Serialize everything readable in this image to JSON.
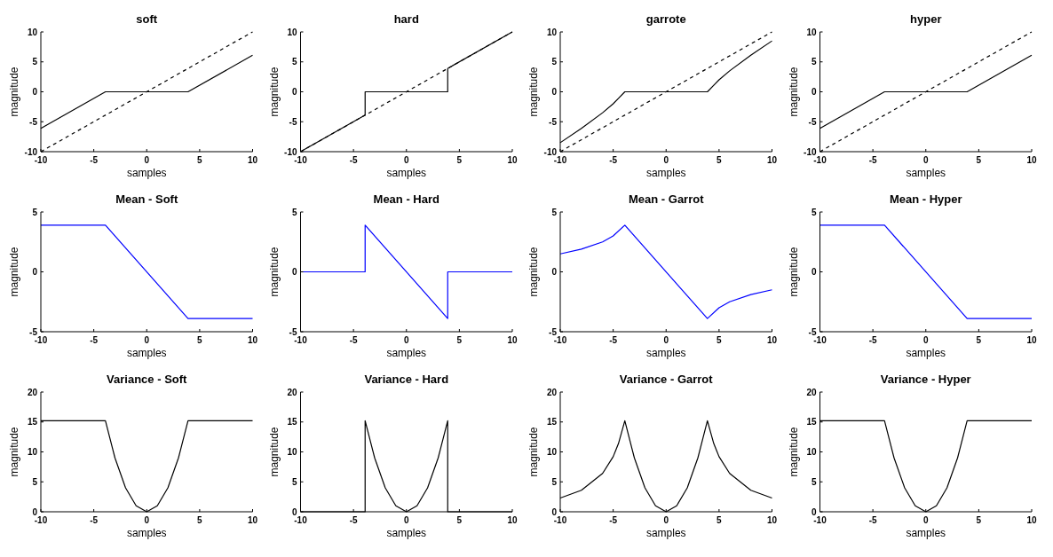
{
  "chart_data": [
    {
      "type": "line",
      "title": "soft",
      "xlabel": "samples",
      "ylabel": "magnitude",
      "xlim": [
        -10,
        10
      ],
      "xticks": [
        -10,
        -5,
        0,
        5,
        10
      ],
      "ylim": [
        -10,
        10
      ],
      "yticks": [
        -10,
        -5,
        0,
        5,
        10
      ],
      "series": [
        {
          "color": "#000000",
          "line_style": "dashed",
          "x": [
            -10,
            10
          ],
          "values": [
            -10,
            10
          ]
        },
        {
          "color": "#000000",
          "x": [
            -10,
            -3.9,
            3.9,
            10
          ],
          "values": [
            -6.1,
            0,
            0,
            6.1
          ]
        }
      ]
    },
    {
      "type": "line",
      "title": "hard",
      "xlabel": "samples",
      "ylabel": "magnitude",
      "xlim": [
        -10,
        10
      ],
      "xticks": [
        -10,
        -5,
        0,
        5,
        10
      ],
      "ylim": [
        -10,
        10
      ],
      "yticks": [
        -10,
        -5,
        0,
        5,
        10
      ],
      "series": [
        {
          "color": "#000000",
          "line_style": "dashed",
          "x": [
            -10,
            10
          ],
          "values": [
            -10,
            10
          ]
        },
        {
          "color": "#000000",
          "x": [
            -10,
            -3.9,
            -3.9,
            3.9,
            3.9,
            10
          ],
          "values": [
            -10,
            -3.9,
            0,
            0,
            3.9,
            10
          ]
        }
      ]
    },
    {
      "type": "line",
      "title": "garrote",
      "xlabel": "samples",
      "ylabel": "magnitude",
      "xlim": [
        -10,
        10
      ],
      "xticks": [
        -10,
        -5,
        0,
        5,
        10
      ],
      "ylim": [
        -10,
        10
      ],
      "yticks": [
        -10,
        -5,
        0,
        5,
        10
      ],
      "series": [
        {
          "color": "#000000",
          "line_style": "dashed",
          "x": [
            -10,
            10
          ],
          "values": [
            -10,
            10
          ]
        },
        {
          "color": "#000000",
          "x": [
            -10,
            -8,
            -6,
            -5,
            -4.5,
            -3.9,
            3.9,
            4.5,
            5,
            6,
            8,
            10
          ],
          "values": [
            -8.5,
            -6.1,
            -3.5,
            -2,
            -1.1,
            0,
            0,
            1.1,
            2,
            3.5,
            6.1,
            8.5
          ]
        }
      ]
    },
    {
      "type": "line",
      "title": "hyper",
      "xlabel": "samples",
      "ylabel": "magnitude",
      "xlim": [
        -10,
        10
      ],
      "xticks": [
        -10,
        -5,
        0,
        5,
        10
      ],
      "ylim": [
        -10,
        10
      ],
      "yticks": [
        -10,
        -5,
        0,
        5,
        10
      ],
      "series": [
        {
          "color": "#000000",
          "line_style": "dashed",
          "x": [
            -10,
            10
          ],
          "values": [
            -10,
            10
          ]
        },
        {
          "color": "#000000",
          "x": [
            -10,
            -3.9,
            3.9,
            10
          ],
          "values": [
            -6.1,
            0,
            0,
            6.1
          ]
        }
      ]
    },
    {
      "type": "line",
      "title": "Mean - Soft",
      "xlabel": "samples",
      "ylabel": "magnitude",
      "xlim": [
        -10,
        10
      ],
      "xticks": [
        -10,
        -5,
        0,
        5,
        10
      ],
      "ylim": [
        -5,
        5
      ],
      "yticks": [
        -5,
        0,
        5
      ],
      "series": [
        {
          "color": "#0000ff",
          "x": [
            -10,
            -3.9,
            3.9,
            10
          ],
          "values": [
            3.9,
            3.9,
            -3.9,
            -3.9
          ]
        }
      ]
    },
    {
      "type": "line",
      "title": "Mean - Hard",
      "xlabel": "samples",
      "ylabel": "magnitude",
      "xlim": [
        -10,
        10
      ],
      "xticks": [
        -10,
        -5,
        0,
        5,
        10
      ],
      "ylim": [
        -5,
        5
      ],
      "yticks": [
        -5,
        0,
        5
      ],
      "series": [
        {
          "color": "#0000ff",
          "x": [
            -10,
            -3.9,
            -3.9,
            3.9,
            3.9,
            10
          ],
          "values": [
            0,
            0,
            3.9,
            -3.9,
            0,
            0
          ]
        }
      ]
    },
    {
      "type": "line",
      "title": "Mean - Garrot",
      "xlabel": "samples",
      "ylabel": "magnitude",
      "xlim": [
        -10,
        10
      ],
      "xticks": [
        -10,
        -5,
        0,
        5,
        10
      ],
      "ylim": [
        -5,
        5
      ],
      "yticks": [
        -5,
        0,
        5
      ],
      "series": [
        {
          "color": "#0000ff",
          "x": [
            -10,
            -8,
            -6,
            -5,
            -3.9,
            3.9,
            5,
            6,
            8,
            10
          ],
          "values": [
            1.5,
            1.9,
            2.5,
            3,
            3.9,
            -3.9,
            -3,
            -2.5,
            -1.9,
            -1.5
          ]
        }
      ]
    },
    {
      "type": "line",
      "title": "Mean - Hyper",
      "xlabel": "samples",
      "ylabel": "magnitude",
      "xlim": [
        -10,
        10
      ],
      "xticks": [
        -10,
        -5,
        0,
        5,
        10
      ],
      "ylim": [
        -5,
        5
      ],
      "yticks": [
        -5,
        0,
        5
      ],
      "series": [
        {
          "color": "#0000ff",
          "x": [
            -10,
            -3.9,
            3.9,
            10
          ],
          "values": [
            3.9,
            3.9,
            -3.9,
            -3.9
          ]
        }
      ]
    },
    {
      "type": "line",
      "title": "Variance - Soft",
      "xlabel": "samples",
      "ylabel": "magnitude",
      "xlim": [
        -10,
        10
      ],
      "xticks": [
        -10,
        -5,
        0,
        5,
        10
      ],
      "ylim": [
        0,
        20
      ],
      "yticks": [
        0,
        5,
        10,
        15,
        20
      ],
      "series": [
        {
          "color": "#000000",
          "x": [
            -10,
            -3.9,
            -3,
            -2,
            -1,
            0,
            1,
            2,
            3,
            3.9,
            10
          ],
          "values": [
            15.2,
            15.2,
            9,
            4,
            1,
            0,
            1,
            4,
            9,
            15.2,
            15.2
          ]
        }
      ]
    },
    {
      "type": "line",
      "title": "Variance - Hard",
      "xlabel": "samples",
      "ylabel": "magnitude",
      "xlim": [
        -10,
        10
      ],
      "xticks": [
        -10,
        -5,
        0,
        5,
        10
      ],
      "ylim": [
        0,
        20
      ],
      "yticks": [
        0,
        5,
        10,
        15,
        20
      ],
      "series": [
        {
          "color": "#000000",
          "x": [
            -10,
            -3.9,
            -3.9,
            -3,
            -2,
            -1,
            0,
            1,
            2,
            3,
            3.9,
            3.9,
            10
          ],
          "values": [
            0,
            0,
            15.2,
            9,
            4,
            1,
            0,
            1,
            4,
            9,
            15.2,
            0,
            0
          ]
        }
      ]
    },
    {
      "type": "line",
      "title": "Variance - Garrot",
      "xlabel": "samples",
      "ylabel": "magnitude",
      "xlim": [
        -10,
        10
      ],
      "xticks": [
        -10,
        -5,
        0,
        5,
        10
      ],
      "ylim": [
        0,
        20
      ],
      "yticks": [
        0,
        5,
        10,
        15,
        20
      ],
      "series": [
        {
          "color": "#000000",
          "x": [
            -10,
            -8,
            -6,
            -5,
            -4.5,
            -3.9,
            -3,
            -2,
            -1,
            0,
            1,
            2,
            3,
            3.9,
            4.5,
            5,
            6,
            8,
            10
          ],
          "values": [
            2.3,
            3.6,
            6.4,
            9.2,
            11.4,
            15.2,
            9,
            4,
            1,
            0,
            1,
            4,
            9,
            15.2,
            11.4,
            9.2,
            6.4,
            3.6,
            2.3
          ]
        }
      ]
    },
    {
      "type": "line",
      "title": "Variance - Hyper",
      "xlabel": "samples",
      "ylabel": "magnitude",
      "xlim": [
        -10,
        10
      ],
      "xticks": [
        -10,
        -5,
        0,
        5,
        10
      ],
      "ylim": [
        0,
        20
      ],
      "yticks": [
        0,
        5,
        10,
        15,
        20
      ],
      "series": [
        {
          "color": "#000000",
          "x": [
            -10,
            -3.9,
            -3,
            -2,
            -1,
            0,
            1,
            2,
            3,
            3.9,
            10
          ],
          "values": [
            15.2,
            15.2,
            9,
            4,
            1,
            0,
            1,
            4,
            9,
            15.2,
            15.2
          ]
        }
      ]
    }
  ]
}
